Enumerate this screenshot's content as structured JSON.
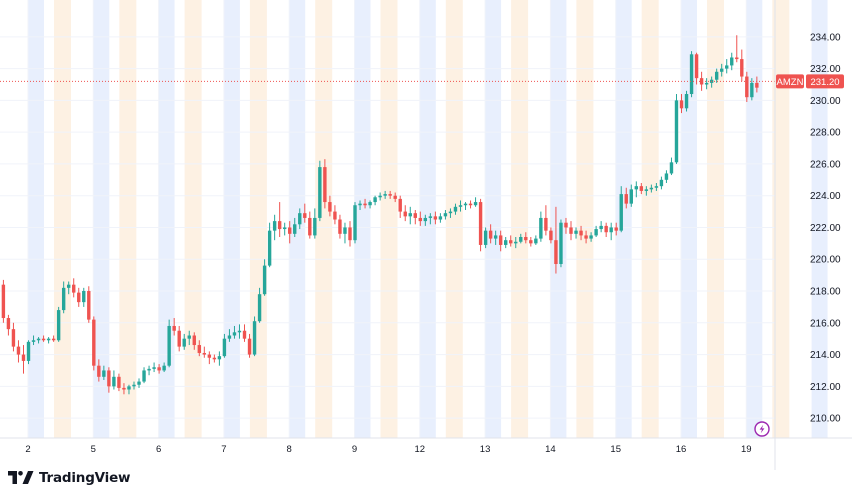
{
  "colors": {
    "up": "#26a69a",
    "down": "#ef5350",
    "session_blue": "#e8effd",
    "session_orange": "#fdf1e3",
    "grid": "#f0f3fa",
    "last_price_line": "#ef5350",
    "text": "#131722"
  },
  "branding": {
    "name": "TradingView",
    "icon": "tradingview-logo-icon"
  },
  "chart_data": {
    "type": "candlestick",
    "symbol": "AMZN",
    "last_price": 231.2,
    "last_price_label": "231.20",
    "ylim": [
      209.0,
      235.5
    ],
    "y_ticks": [
      210,
      212,
      214,
      216,
      218,
      220,
      222,
      224,
      226,
      228,
      230,
      232,
      234
    ],
    "y_tick_labels": [
      "210.00",
      "212.00",
      "214.00",
      "216.00",
      "218.00",
      "220.00",
      "222.00",
      "224.00",
      "226.00",
      "228.00",
      "230.00",
      "232.00",
      "234.00"
    ],
    "x_ticks": [
      "2",
      "5",
      "6",
      "7",
      "8",
      "9",
      "12",
      "13",
      "14",
      "15",
      "16",
      "19"
    ],
    "bars_per_day": 13,
    "days": [
      {
        "label": "",
        "ohlc": [
          [
            218.4,
            218.7,
            216.0,
            216.3
          ],
          [
            216.3,
            216.5,
            215.2,
            215.6
          ],
          [
            215.6,
            216.0,
            214.2,
            214.5
          ],
          [
            214.5,
            214.9,
            213.5,
            214.0
          ],
          [
            214.0,
            214.6,
            212.8,
            213.6
          ]
        ]
      },
      {
        "label": "2",
        "ohlc": [
          [
            213.6,
            214.9,
            213.4,
            214.8
          ],
          [
            214.8,
            215.2,
            214.6,
            214.9
          ],
          [
            214.9,
            215.1,
            214.7,
            215.0
          ],
          [
            215.0,
            215.2,
            214.8,
            214.9
          ],
          [
            214.9,
            215.1,
            214.7,
            215.0
          ],
          [
            215.0,
            215.2,
            214.8,
            214.9
          ],
          [
            214.9,
            217.0,
            214.8,
            216.8
          ],
          [
            216.8,
            218.6,
            216.6,
            218.2
          ],
          [
            218.2,
            218.6,
            217.8,
            218.4
          ],
          [
            218.4,
            218.8,
            217.6,
            217.9
          ],
          [
            217.9,
            218.2,
            217.0,
            217.3
          ],
          [
            217.3,
            218.2,
            217.0,
            218.0
          ],
          [
            218.0,
            218.3,
            216.0,
            216.2
          ]
        ]
      },
      {
        "label": "5",
        "ohlc": [
          [
            216.2,
            216.4,
            213.0,
            213.3
          ],
          [
            213.3,
            213.7,
            212.3,
            212.6
          ],
          [
            212.6,
            213.3,
            212.4,
            213.0
          ],
          [
            213.0,
            213.2,
            211.6,
            212.0
          ],
          [
            212.0,
            213.0,
            211.8,
            212.6
          ],
          [
            212.6,
            212.8,
            211.7,
            211.9
          ],
          [
            211.9,
            212.2,
            211.5,
            211.8
          ],
          [
            211.8,
            212.1,
            211.5,
            212.0
          ],
          [
            212.0,
            212.3,
            211.8,
            212.1
          ],
          [
            212.1,
            212.5,
            211.9,
            212.3
          ],
          [
            212.3,
            213.2,
            212.2,
            213.0
          ],
          [
            213.0,
            213.3,
            212.7,
            213.1
          ],
          [
            213.1,
            213.5,
            212.9,
            213.2
          ]
        ]
      },
      {
        "label": "6",
        "ohlc": [
          [
            213.2,
            213.4,
            212.8,
            213.0
          ],
          [
            213.0,
            213.5,
            212.9,
            213.3
          ],
          [
            213.3,
            216.2,
            213.2,
            215.8
          ],
          [
            215.8,
            216.3,
            215.2,
            215.5
          ],
          [
            215.5,
            215.8,
            214.2,
            214.5
          ],
          [
            214.5,
            215.3,
            214.3,
            215.0
          ],
          [
            215.0,
            215.5,
            214.6,
            215.2
          ],
          [
            215.2,
            215.4,
            214.3,
            214.6
          ],
          [
            214.6,
            214.9,
            213.9,
            214.1
          ],
          [
            214.1,
            214.5,
            213.8,
            214.0
          ],
          [
            214.0,
            214.2,
            213.4,
            213.8
          ],
          [
            213.8,
            214.0,
            213.5,
            213.7
          ],
          [
            213.7,
            214.2,
            213.3,
            213.9
          ]
        ]
      },
      {
        "label": "7",
        "ohlc": [
          [
            213.9,
            215.3,
            213.8,
            215.0
          ],
          [
            215.0,
            215.6,
            214.8,
            215.2
          ],
          [
            215.2,
            215.8,
            215.0,
            215.4
          ],
          [
            215.4,
            215.9,
            215.0,
            215.5
          ],
          [
            215.5,
            215.9,
            214.8,
            215.0
          ],
          [
            215.0,
            215.3,
            213.8,
            214.0
          ],
          [
            214.0,
            216.4,
            213.9,
            216.1
          ],
          [
            216.1,
            218.2,
            216.0,
            217.8
          ],
          [
            217.8,
            220.0,
            217.7,
            219.6
          ],
          [
            219.6,
            222.3,
            219.5,
            221.8
          ],
          [
            221.8,
            222.8,
            221.2,
            222.4
          ],
          [
            222.4,
            223.6,
            221.4,
            221.9
          ],
          [
            221.9,
            222.3,
            221.5,
            222.0
          ]
        ]
      },
      {
        "label": "8",
        "ohlc": [
          [
            222.0,
            222.4,
            221.0,
            221.6
          ],
          [
            221.6,
            222.6,
            221.4,
            222.2
          ],
          [
            222.2,
            223.2,
            221.9,
            222.9
          ],
          [
            222.9,
            223.5,
            222.3,
            222.6
          ],
          [
            222.6,
            223.0,
            221.3,
            221.5
          ],
          [
            221.5,
            223.2,
            221.3,
            222.6
          ],
          [
            222.6,
            226.2,
            222.4,
            225.8
          ],
          [
            225.8,
            226.3,
            223.2,
            223.6
          ],
          [
            223.6,
            224.0,
            222.7,
            223.0
          ],
          [
            223.0,
            223.4,
            222.2,
            222.5
          ],
          [
            222.5,
            222.8,
            221.3,
            221.6
          ],
          [
            221.6,
            222.3,
            221.0,
            222.0
          ],
          [
            222.0,
            222.4,
            220.8,
            221.2
          ]
        ]
      },
      {
        "label": "9",
        "ohlc": [
          [
            221.2,
            223.6,
            221.0,
            223.4
          ],
          [
            223.4,
            223.7,
            223.1,
            223.5
          ],
          [
            223.5,
            223.8,
            223.2,
            223.4
          ],
          [
            223.4,
            223.7,
            223.2,
            223.6
          ],
          [
            223.6,
            224.0,
            223.4,
            223.9
          ],
          [
            223.9,
            224.2,
            223.7,
            224.0
          ],
          [
            224.0,
            224.3,
            223.8,
            224.1
          ],
          [
            224.1,
            224.3,
            223.8,
            224.0
          ],
          [
            224.0,
            224.2,
            223.6,
            223.8
          ],
          [
            223.8,
            224.0,
            222.6,
            223.0
          ],
          [
            223.0,
            223.4,
            222.4,
            222.7
          ],
          [
            222.7,
            223.3,
            222.2,
            222.9
          ],
          [
            222.9,
            223.1,
            222.2,
            222.6
          ]
        ]
      },
      {
        "label": "12",
        "ohlc": [
          [
            222.6,
            223.0,
            222.1,
            222.4
          ],
          [
            222.4,
            222.8,
            222.1,
            222.6
          ],
          [
            222.6,
            222.9,
            222.2,
            222.7
          ],
          [
            222.7,
            223.0,
            222.2,
            222.5
          ],
          [
            222.5,
            222.9,
            222.3,
            222.7
          ],
          [
            222.7,
            223.1,
            222.5,
            222.9
          ],
          [
            222.9,
            223.2,
            222.6,
            223.0
          ],
          [
            223.0,
            223.5,
            222.8,
            223.3
          ],
          [
            223.3,
            223.7,
            223.0,
            223.4
          ],
          [
            223.4,
            223.6,
            223.1,
            223.5
          ],
          [
            223.5,
            223.7,
            223.2,
            223.4
          ],
          [
            223.4,
            223.9,
            223.3,
            223.6
          ],
          [
            223.6,
            223.8,
            220.5,
            220.9
          ]
        ]
      },
      {
        "label": "13",
        "ohlc": [
          [
            220.9,
            222.0,
            220.7,
            221.8
          ],
          [
            221.8,
            222.2,
            221.0,
            221.3
          ],
          [
            221.3,
            221.8,
            220.9,
            221.5
          ],
          [
            221.5,
            221.8,
            220.5,
            220.9
          ],
          [
            220.9,
            221.4,
            220.7,
            221.2
          ],
          [
            221.2,
            221.5,
            220.8,
            221.0
          ],
          [
            221.0,
            221.4,
            220.7,
            221.1
          ],
          [
            221.1,
            221.6,
            221.0,
            221.4
          ],
          [
            221.4,
            221.7,
            221.0,
            221.2
          ],
          [
            221.2,
            221.4,
            220.8,
            221.0
          ],
          [
            221.0,
            221.5,
            220.9,
            221.3
          ],
          [
            221.3,
            223.0,
            221.1,
            222.6
          ],
          [
            222.6,
            223.4,
            221.5,
            221.8
          ]
        ]
      },
      {
        "label": "14",
        "ohlc": [
          [
            221.8,
            222.0,
            221.0,
            221.2
          ],
          [
            221.2,
            223.3,
            219.1,
            219.7
          ],
          [
            219.7,
            222.5,
            219.5,
            222.3
          ],
          [
            222.3,
            222.6,
            221.6,
            222.0
          ],
          [
            222.0,
            222.4,
            221.2,
            221.6
          ],
          [
            221.6,
            222.0,
            221.3,
            221.8
          ],
          [
            221.8,
            222.1,
            221.2,
            221.5
          ],
          [
            221.5,
            221.8,
            221.0,
            221.3
          ],
          [
            221.3,
            221.7,
            221.1,
            221.5
          ],
          [
            221.5,
            222.1,
            221.4,
            221.9
          ],
          [
            221.9,
            222.4,
            221.7,
            222.1
          ],
          [
            222.1,
            222.3,
            221.4,
            221.7
          ],
          [
            221.7,
            222.3,
            221.2,
            222.0
          ]
        ]
      },
      {
        "label": "15",
        "ohlc": [
          [
            222.0,
            222.3,
            221.5,
            221.8
          ],
          [
            221.8,
            224.6,
            221.7,
            224.1
          ],
          [
            224.1,
            224.5,
            223.2,
            223.5
          ],
          [
            223.5,
            224.7,
            223.3,
            224.4
          ],
          [
            224.4,
            224.9,
            223.9,
            224.6
          ],
          [
            224.6,
            224.8,
            224.1,
            224.3
          ],
          [
            224.3,
            224.6,
            224.0,
            224.4
          ],
          [
            224.4,
            224.7,
            224.2,
            224.5
          ],
          [
            224.5,
            224.8,
            224.3,
            224.6
          ],
          [
            224.6,
            225.2,
            224.4,
            225.0
          ],
          [
            225.0,
            225.6,
            224.8,
            225.4
          ],
          [
            225.4,
            226.4,
            225.3,
            226.1
          ],
          [
            226.1,
            230.4,
            226.0,
            230.0
          ]
        ]
      },
      {
        "label": "16",
        "ohlc": [
          [
            230.0,
            230.4,
            229.2,
            229.5
          ],
          [
            229.5,
            230.6,
            229.3,
            230.4
          ],
          [
            230.4,
            233.1,
            230.2,
            232.9
          ],
          [
            232.9,
            233.0,
            231.0,
            231.4
          ],
          [
            231.4,
            231.8,
            230.6,
            231.0
          ],
          [
            231.0,
            231.4,
            230.7,
            231.1
          ],
          [
            231.1,
            231.5,
            230.8,
            231.3
          ],
          [
            231.3,
            232.0,
            231.1,
            231.8
          ],
          [
            231.8,
            232.3,
            231.5,
            232.0
          ],
          [
            232.0,
            232.6,
            231.7,
            232.2
          ],
          [
            232.2,
            233.0,
            231.9,
            232.7
          ],
          [
            232.7,
            234.1,
            232.4,
            232.6
          ],
          [
            232.6,
            233.2,
            231.2,
            231.5
          ]
        ]
      },
      {
        "label": "19",
        "ohlc": [
          [
            231.5,
            231.8,
            229.9,
            230.2
          ],
          [
            230.2,
            231.4,
            230.0,
            231.1
          ],
          [
            231.1,
            231.5,
            230.5,
            230.8
          ],
          [
            230.8,
            231.3,
            230.3,
            231.0
          ],
          [
            231.0,
            231.6,
            230.6,
            231.4
          ],
          [
            231.4,
            231.7,
            230.9,
            231.2
          ],
          [
            231.2,
            231.5,
            230.2,
            230.5
          ],
          [
            230.5,
            230.8,
            229.7,
            230.0
          ],
          [
            230.0,
            230.9,
            229.8,
            230.6
          ],
          [
            230.6,
            230.9,
            230.1,
            230.4
          ],
          [
            230.4,
            230.8,
            228.3,
            228.8
          ],
          [
            228.8,
            230.2,
            228.6,
            230.0
          ],
          [
            230.0,
            230.6,
            229.8,
            230.4
          ]
        ]
      },
      {
        "label": "",
        "ohlc": [
          [
            230.4,
            230.7,
            229.8,
            230.1
          ],
          [
            230.1,
            231.1,
            230.0,
            230.9
          ],
          [
            230.9,
            232.0,
            230.7,
            231.7
          ],
          [
            231.7,
            231.9,
            231.2,
            231.5
          ],
          [
            231.5,
            231.8,
            231.1,
            231.3
          ],
          [
            231.3,
            231.5,
            231.1,
            231.2
          ],
          [
            231.2,
            231.4,
            231.0,
            231.2
          ]
        ]
      }
    ]
  }
}
